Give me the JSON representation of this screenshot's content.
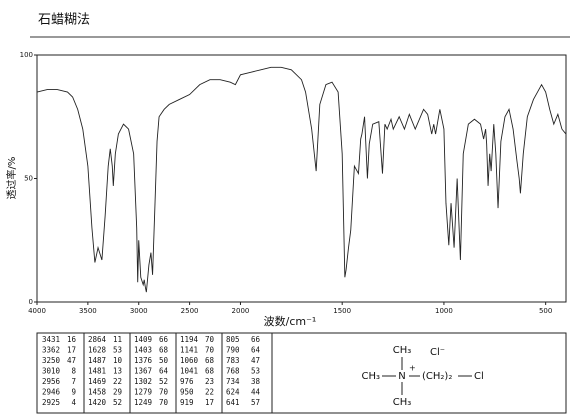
{
  "chart_data": {
    "type": "line",
    "title": "石蜡糊法",
    "xlabel": "波数/cm⁻¹",
    "ylabel": "透过率/%",
    "xlim": [
      4000,
      400
    ],
    "x_scale_break": 2000,
    "xticks": [
      4000,
      3500,
      3000,
      2500,
      2000,
      1500,
      1000,
      500
    ],
    "ylim": [
      0,
      100
    ],
    "yticks": [
      0,
      50,
      100
    ],
    "color": "#222222",
    "x": [
      4000,
      3900,
      3800,
      3700,
      3650,
      3600,
      3550,
      3500,
      3460,
      3431,
      3400,
      3362,
      3330,
      3300,
      3280,
      3260,
      3250,
      3230,
      3200,
      3150,
      3100,
      3050,
      3020,
      3010,
      3000,
      2980,
      2956,
      2946,
      2935,
      2925,
      2900,
      2880,
      2864,
      2840,
      2820,
      2800,
      2750,
      2700,
      2600,
      2500,
      2400,
      2300,
      2200,
      2100,
      2050,
      2000,
      1950,
      1900,
      1850,
      1800,
      1750,
      1700,
      1680,
      1650,
      1628,
      1610,
      1580,
      1550,
      1520,
      1500,
      1487,
      1481,
      1469,
      1458,
      1440,
      1420,
      1409,
      1403,
      1390,
      1376,
      1367,
      1350,
      1320,
      1302,
      1290,
      1279,
      1260,
      1249,
      1220,
      1194,
      1170,
      1141,
      1100,
      1080,
      1060,
      1050,
      1041,
      1020,
      1000,
      990,
      976,
      965,
      950,
      935,
      919,
      905,
      880,
      850,
      820,
      805,
      795,
      790,
      783,
      775,
      768,
      755,
      745,
      734,
      720,
      700,
      680,
      660,
      641,
      630,
      624,
      610,
      590,
      560,
      540,
      520,
      500,
      480,
      460,
      440,
      420,
      400
    ],
    "values": [
      85,
      86,
      86,
      85,
      83,
      78,
      70,
      55,
      30,
      16,
      22,
      17,
      35,
      55,
      62,
      55,
      47,
      60,
      68,
      72,
      70,
      60,
      30,
      8,
      25,
      10,
      7,
      9,
      6,
      4,
      15,
      20,
      11,
      40,
      65,
      75,
      78,
      80,
      82,
      84,
      88,
      90,
      90,
      89,
      88,
      92,
      93,
      94,
      95,
      95,
      94,
      90,
      85,
      70,
      53,
      80,
      88,
      89,
      85,
      60,
      10,
      13,
      22,
      29,
      55,
      52,
      66,
      68,
      75,
      50,
      64,
      72,
      73,
      52,
      72,
      70,
      74,
      70,
      75,
      70,
      76,
      70,
      78,
      76,
      68,
      72,
      68,
      78,
      70,
      40,
      23,
      40,
      22,
      50,
      17,
      60,
      72,
      74,
      72,
      66,
      70,
      64,
      47,
      60,
      53,
      72,
      60,
      38,
      65,
      75,
      78,
      70,
      57,
      50,
      44,
      60,
      75,
      82,
      85,
      88,
      85,
      78,
      72,
      76,
      70,
      68
    ]
  },
  "peak_table": {
    "columns": [
      [
        [
          3431,
          16
        ],
        [
          3362,
          17
        ],
        [
          3250,
          47
        ],
        [
          3010,
          8
        ],
        [
          2956,
          7
        ],
        [
          2946,
          9
        ],
        [
          2925,
          4
        ]
      ],
      [
        [
          2864,
          11
        ],
        [
          1628,
          53
        ],
        [
          1487,
          10
        ],
        [
          1481,
          13
        ],
        [
          1469,
          22
        ],
        [
          1458,
          29
        ],
        [
          1420,
          52
        ]
      ],
      [
        [
          1409,
          66
        ],
        [
          1403,
          68
        ],
        [
          1376,
          50
        ],
        [
          1367,
          64
        ],
        [
          1302,
          52
        ],
        [
          1279,
          70
        ],
        [
          1249,
          70
        ]
      ],
      [
        [
          1194,
          70
        ],
        [
          1141,
          70
        ],
        [
          1060,
          68
        ],
        [
          1041,
          68
        ],
        [
          976,
          23
        ],
        [
          950,
          22
        ],
        [
          919,
          17
        ]
      ],
      [
        [
          805,
          66
        ],
        [
          790,
          64
        ],
        [
          783,
          47
        ],
        [
          768,
          53
        ],
        [
          734,
          38
        ],
        [
          624,
          44
        ],
        [
          641,
          57
        ]
      ]
    ]
  },
  "structure": {
    "top": "CH₃",
    "anion": "Cl⁻",
    "left": "CH₃",
    "center": "N",
    "charge": "+",
    "chain": "(CH₂)₂",
    "end": "Cl",
    "bottom": "CH₃"
  }
}
